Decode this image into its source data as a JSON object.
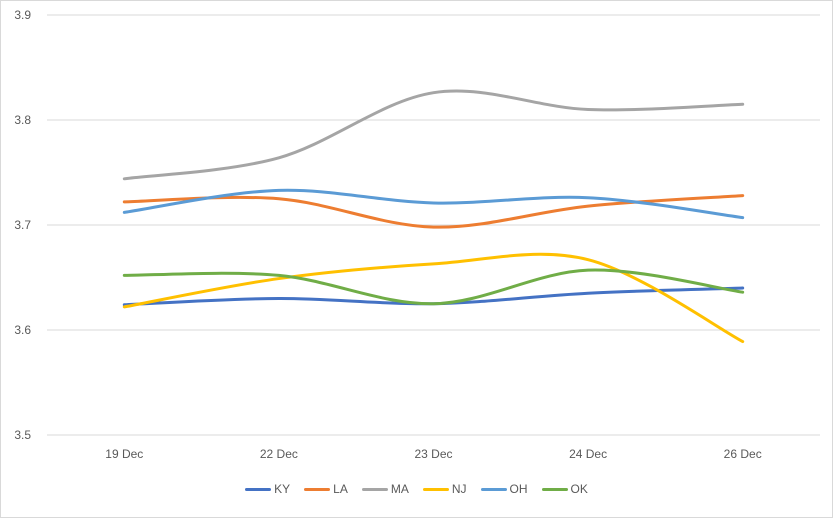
{
  "chart_data": {
    "type": "line",
    "smooth": true,
    "categories": [
      "19 Dec",
      "22 Dec",
      "23 Dec",
      "24 Dec",
      "26 Dec"
    ],
    "ylim": [
      3.5,
      3.9
    ],
    "yticks": [
      "3.5",
      "3.6",
      "3.7",
      "3.8",
      "3.9"
    ],
    "grid": true,
    "legend": "bottom",
    "series": [
      {
        "name": "KY",
        "color": "#4472c4",
        "values": [
          3.624,
          3.63,
          3.625,
          3.635,
          3.64
        ]
      },
      {
        "name": "LA",
        "color": "#ed7d31",
        "values": [
          3.722,
          3.725,
          3.698,
          3.718,
          3.728
        ]
      },
      {
        "name": "MA",
        "color": "#a5a5a5",
        "values": [
          3.744,
          3.764,
          3.826,
          3.81,
          3.815
        ]
      },
      {
        "name": "NJ",
        "color": "#ffc000",
        "values": [
          3.622,
          3.649,
          3.663,
          3.667,
          3.589
        ]
      },
      {
        "name": "OH",
        "color": "#5b9bd5",
        "values": [
          3.712,
          3.733,
          3.721,
          3.726,
          3.707
        ]
      },
      {
        "name": "OK",
        "color": "#70ad47",
        "values": [
          3.652,
          3.652,
          3.625,
          3.657,
          3.636
        ]
      }
    ]
  }
}
